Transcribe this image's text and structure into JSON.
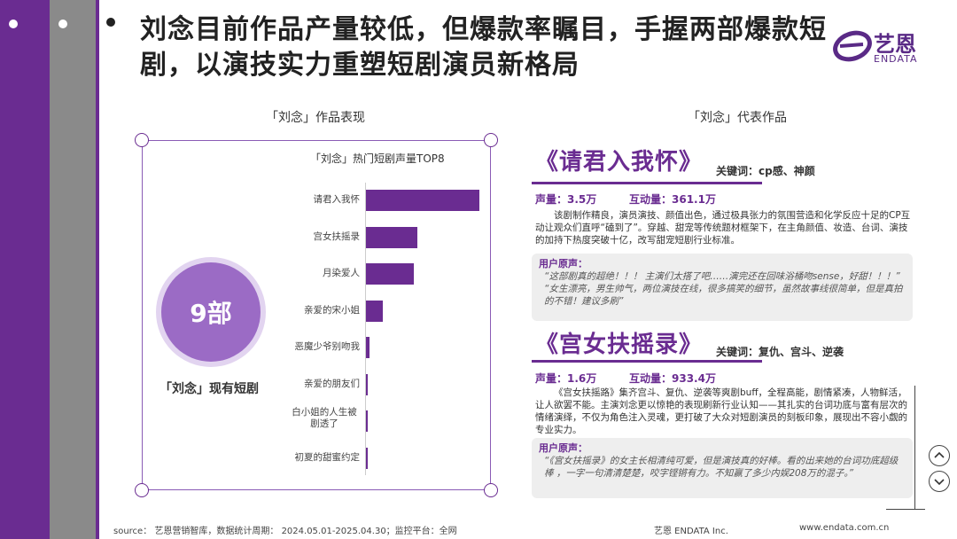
{
  "title": "刘念目前作品产量较低，但爆款率瞩目，手握两部爆款短剧，以演技实力重塑短剧演员新格局",
  "logo": {
    "cn": "艺恩",
    "en": "ENDATA"
  },
  "left": {
    "section_title": "「刘念」作品表现",
    "circle_value": "9部",
    "circle_label": "「刘念」现有短剧"
  },
  "right": {
    "section_title": "「刘念」代表作品"
  },
  "chart_data": {
    "type": "bar",
    "title": "「刘念」热门短剧声量TOP8",
    "categories": [
      "请君入我怀",
      "宫女扶摇录",
      "月染爱人",
      "亲爱的宋小姐",
      "恶魔少爷别吻我",
      "亲爱的朋友们",
      "白小姐的人生被剧透了",
      "初夏的甜蜜约定"
    ],
    "values": [
      100,
      45,
      42,
      15,
      3,
      1.5,
      1,
      0.8
    ],
    "orientation": "horizontal",
    "color": "#6a2c91"
  },
  "works": [
    {
      "title": "《请君入我怀》",
      "keywords": "关键词：cp感、神颜",
      "volume": "声量：3.5万",
      "interaction": "互动量：361.1万",
      "desc": "该剧制作精良，演员演技、颜值出色，通过极具张力的氛围营造和化学反应十足的CP互动让观众们直呼“磕到了”。穿越、甜宠等传统题材框架下，在主角颜值、妆造、台词、演技的加持下热度突破十亿，改写甜宠短剧行业标准。",
      "review_title": "用户原声：",
      "reviews": [
        "“这部剧真的超绝！！！      主演们太搭了吧……演完还在回味浴桶吻sense，好甜！！！”",
        "“女生漂亮，男生帅气，两位演技在线，很多搞笑的细节，虽然故事线很简单，但是真拍的不错！建议多刷”"
      ]
    },
    {
      "title": "《宫女扶摇录》",
      "keywords": "关键词：复仇、宫斗、逆袭",
      "volume": "声量：1.6万",
      "interaction": "互动量：933.4万",
      "desc": "《宫女扶摇路》集齐宫斗、复仇、逆袭等爽剧buff，全程高能，剧情紧凑，人物鲜活，让人欲罢不能。主演刘念更以惊艳的表现刷新行业认知——其扎实的台词功底与富有层次的情绪演绎，不仅为角色注入灵魂，更打破了大众对短剧演员的刻板印象，展现出不容小觑的专业实力。",
      "review_title": "用户原声：",
      "reviews": [
        "“《宫女扶摇录》的女主长相清纯可爱，但是演技真的好棒。看的出来她的台词功底超级棒      ，一字一句清清楚楚，咬字铿锵有力。不知赢了多少内娱208万的混子。”"
      ]
    }
  ],
  "footer": {
    "source": "source：  艺恩营销智库，数据统计周期：  2024.05.01-2025.04.30；监控平台：全网",
    "company": "艺恩 ENDATA Inc.",
    "url": "www.endata.com.cn"
  },
  "nav": {
    "up": "up-arrow-icon",
    "down": "down-arrow-icon"
  }
}
